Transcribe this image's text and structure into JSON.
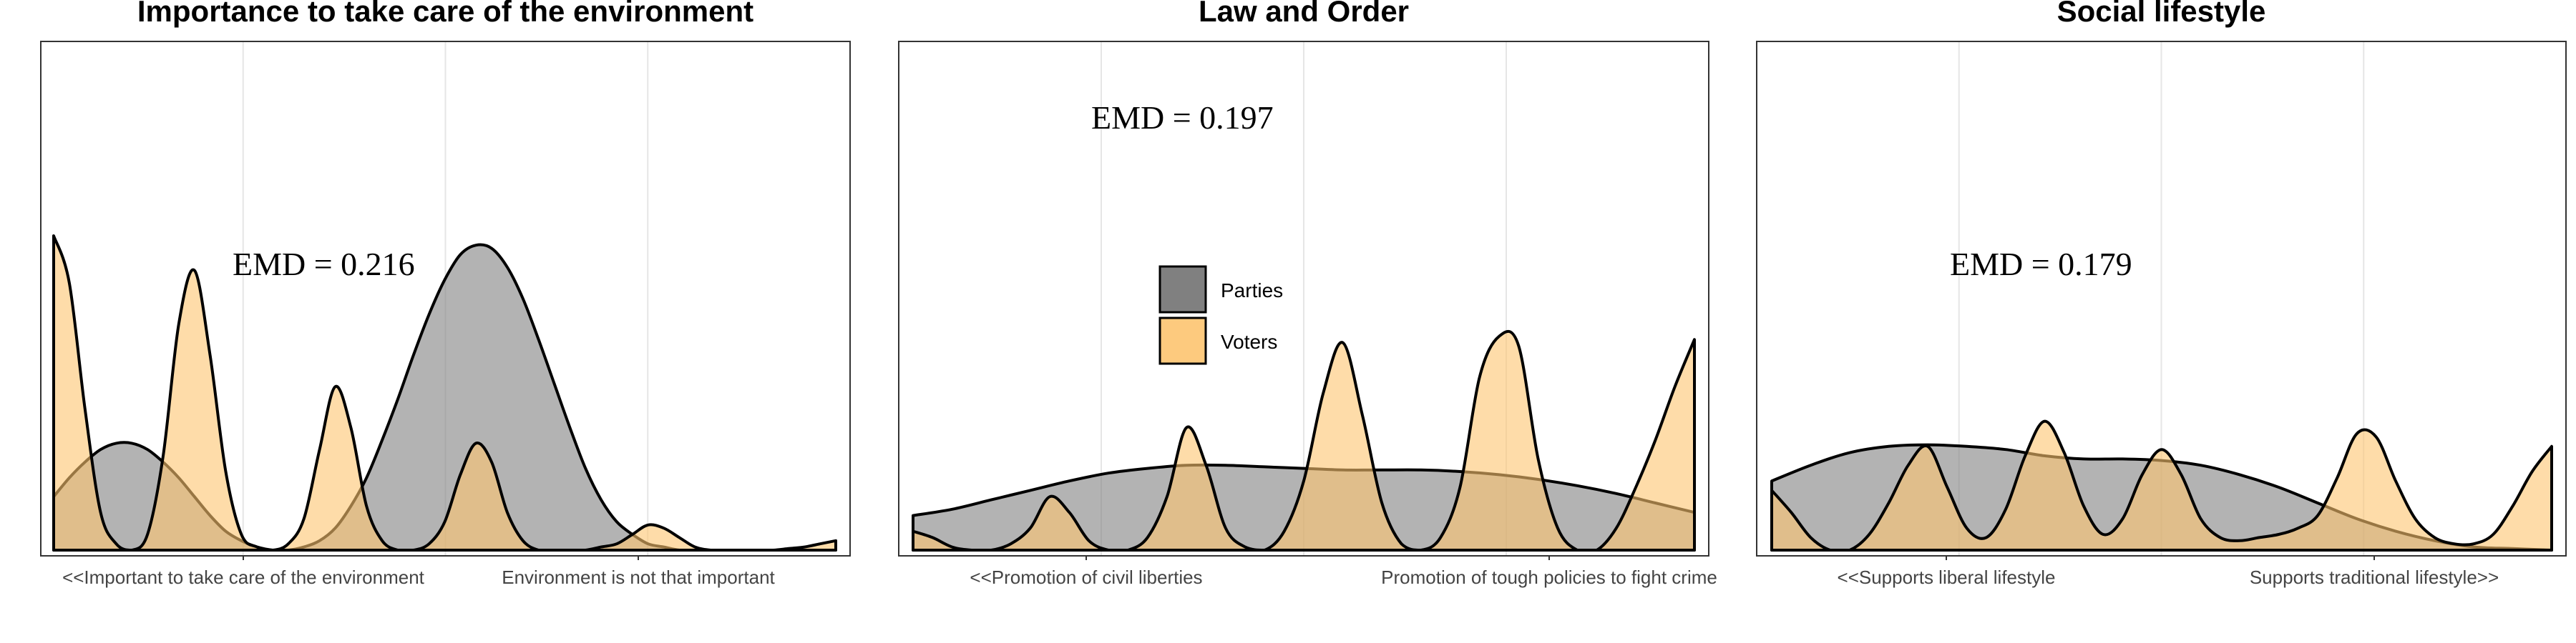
{
  "colors": {
    "parties": "#808080",
    "voters": "#FDC470",
    "outline": "#000000",
    "grid": "#e6e6e6",
    "panel_border": "#333333"
  },
  "legend": {
    "items": [
      {
        "label": "Parties",
        "color": "#808080"
      },
      {
        "label": "Voters",
        "color": "#FDC470"
      }
    ]
  },
  "chart_data": [
    {
      "type": "area",
      "title": "Importance to take care of the environment",
      "annotation": "EMD = 0.216",
      "tick_labels": [
        "<<Important to take care of the environment",
        "Environment is not that important"
      ],
      "xlim": [
        0,
        1
      ],
      "ylim": [
        0,
        1
      ],
      "series": [
        {
          "name": "Parties",
          "x": [
            0.0,
            0.02,
            0.04,
            0.06,
            0.08,
            0.1,
            0.12,
            0.14,
            0.16,
            0.18,
            0.2,
            0.22,
            0.24,
            0.26,
            0.28,
            0.3,
            0.32,
            0.34,
            0.36,
            0.38,
            0.4,
            0.42,
            0.44,
            0.46,
            0.48,
            0.5,
            0.52,
            0.54,
            0.56,
            0.58,
            0.6,
            0.62,
            0.64,
            0.66,
            0.68,
            0.7,
            0.72,
            0.74,
            0.76,
            0.78,
            0.8,
            0.82,
            0.84,
            0.86,
            0.88,
            0.9,
            0.92,
            0.94,
            0.96,
            0.98,
            1.0
          ],
          "y": [
            0.17,
            0.23,
            0.28,
            0.32,
            0.34,
            0.34,
            0.32,
            0.28,
            0.23,
            0.17,
            0.11,
            0.06,
            0.03,
            0.01,
            0.0,
            0.0,
            0.01,
            0.03,
            0.07,
            0.14,
            0.23,
            0.35,
            0.48,
            0.62,
            0.75,
            0.86,
            0.94,
            0.97,
            0.96,
            0.9,
            0.8,
            0.67,
            0.53,
            0.39,
            0.26,
            0.16,
            0.09,
            0.05,
            0.02,
            0.01,
            0.0,
            0.0,
            0.0,
            0.0,
            0.0,
            0.0,
            0.0,
            0.0,
            0.0,
            0.0,
            0.0
          ]
        },
        {
          "name": "Voters",
          "x": [
            0.0,
            0.02,
            0.04,
            0.06,
            0.08,
            0.1,
            0.12,
            0.14,
            0.16,
            0.18,
            0.2,
            0.22,
            0.24,
            0.26,
            0.28,
            0.3,
            0.32,
            0.34,
            0.36,
            0.38,
            0.4,
            0.42,
            0.44,
            0.46,
            0.48,
            0.5,
            0.52,
            0.54,
            0.56,
            0.58,
            0.6,
            0.62,
            0.64,
            0.66,
            0.68,
            0.7,
            0.72,
            0.74,
            0.76,
            0.78,
            0.8,
            0.82,
            0.84,
            0.86,
            0.88,
            0.9,
            0.92,
            0.94,
            0.96,
            0.98,
            1.0
          ],
          "y": [
            1.0,
            0.85,
            0.45,
            0.12,
            0.02,
            0.0,
            0.05,
            0.3,
            0.72,
            0.89,
            0.62,
            0.25,
            0.05,
            0.01,
            0.0,
            0.02,
            0.1,
            0.32,
            0.52,
            0.39,
            0.14,
            0.03,
            0.0,
            0.0,
            0.02,
            0.09,
            0.24,
            0.34,
            0.28,
            0.12,
            0.03,
            0.0,
            0.0,
            0.0,
            0.0,
            0.01,
            0.02,
            0.05,
            0.08,
            0.07,
            0.04,
            0.01,
            0.0,
            0.0,
            0.0,
            0.0,
            0.0,
            0.005,
            0.01,
            0.02,
            0.03
          ]
        }
      ]
    },
    {
      "type": "area",
      "title": "Law and Order",
      "annotation": "EMD = 0.197",
      "tick_labels": [
        "<<Promotion of civil liberties",
        "Promotion of tough policies to fight crime"
      ],
      "xlim": [
        0,
        1
      ],
      "ylim": [
        0,
        1
      ],
      "series": [
        {
          "name": "Parties",
          "x": [
            0.0,
            0.05,
            0.1,
            0.15,
            0.2,
            0.25,
            0.3,
            0.35,
            0.4,
            0.45,
            0.5,
            0.55,
            0.6,
            0.65,
            0.7,
            0.75,
            0.8,
            0.85,
            0.9,
            0.95,
            1.0
          ],
          "y": [
            0.11,
            0.13,
            0.16,
            0.19,
            0.22,
            0.245,
            0.26,
            0.27,
            0.27,
            0.265,
            0.26,
            0.255,
            0.255,
            0.255,
            0.25,
            0.24,
            0.225,
            0.205,
            0.18,
            0.15,
            0.12
          ]
        },
        {
          "name": "Voters",
          "x": [
            0.0,
            0.025,
            0.05,
            0.075,
            0.1,
            0.125,
            0.15,
            0.175,
            0.2,
            0.225,
            0.25,
            0.275,
            0.3,
            0.325,
            0.35,
            0.375,
            0.4,
            0.425,
            0.45,
            0.475,
            0.5,
            0.525,
            0.55,
            0.575,
            0.6,
            0.625,
            0.65,
            0.675,
            0.7,
            0.725,
            0.75,
            0.775,
            0.8,
            0.825,
            0.85,
            0.875,
            0.9,
            0.925,
            0.95,
            0.975,
            1.0
          ],
          "y": [
            0.06,
            0.04,
            0.01,
            0.0,
            0.0,
            0.02,
            0.07,
            0.17,
            0.12,
            0.03,
            0.0,
            0.0,
            0.04,
            0.17,
            0.39,
            0.27,
            0.07,
            0.01,
            0.0,
            0.06,
            0.22,
            0.5,
            0.66,
            0.43,
            0.15,
            0.02,
            0.0,
            0.04,
            0.2,
            0.55,
            0.68,
            0.65,
            0.29,
            0.07,
            0.0,
            0.0,
            0.07,
            0.2,
            0.35,
            0.52,
            0.67
          ]
        }
      ]
    },
    {
      "type": "area",
      "title": "Social lifestyle",
      "annotation": "EMD = 0.179",
      "tick_labels": [
        "<<Supports liberal lifestyle",
        "Supports traditional lifestyle>>"
      ],
      "xlim": [
        0,
        1
      ],
      "ylim": [
        0,
        1
      ],
      "series": [
        {
          "name": "Parties",
          "x": [
            0.0,
            0.05,
            0.1,
            0.15,
            0.2,
            0.25,
            0.3,
            0.35,
            0.4,
            0.45,
            0.5,
            0.55,
            0.6,
            0.65,
            0.7,
            0.75,
            0.8,
            0.85,
            0.9,
            0.95,
            1.0
          ],
          "y": [
            0.22,
            0.27,
            0.31,
            0.33,
            0.335,
            0.33,
            0.32,
            0.3,
            0.29,
            0.29,
            0.285,
            0.27,
            0.24,
            0.2,
            0.15,
            0.1,
            0.06,
            0.03,
            0.01,
            0.005,
            0.0
          ]
        },
        {
          "name": "Voters",
          "x": [
            0.0,
            0.025,
            0.05,
            0.075,
            0.1,
            0.125,
            0.15,
            0.175,
            0.2,
            0.225,
            0.25,
            0.275,
            0.3,
            0.325,
            0.35,
            0.375,
            0.4,
            0.425,
            0.45,
            0.475,
            0.5,
            0.525,
            0.55,
            0.575,
            0.6,
            0.625,
            0.65,
            0.675,
            0.7,
            0.725,
            0.75,
            0.775,
            0.8,
            0.825,
            0.85,
            0.875,
            0.9,
            0.925,
            0.95,
            0.975,
            1.0
          ],
          "y": [
            0.19,
            0.12,
            0.04,
            0.0,
            0.0,
            0.05,
            0.15,
            0.27,
            0.33,
            0.2,
            0.07,
            0.04,
            0.13,
            0.3,
            0.41,
            0.31,
            0.14,
            0.05,
            0.1,
            0.24,
            0.32,
            0.24,
            0.1,
            0.04,
            0.03,
            0.04,
            0.05,
            0.07,
            0.11,
            0.23,
            0.37,
            0.36,
            0.22,
            0.1,
            0.04,
            0.02,
            0.02,
            0.05,
            0.14,
            0.25,
            0.33
          ]
        }
      ]
    }
  ]
}
